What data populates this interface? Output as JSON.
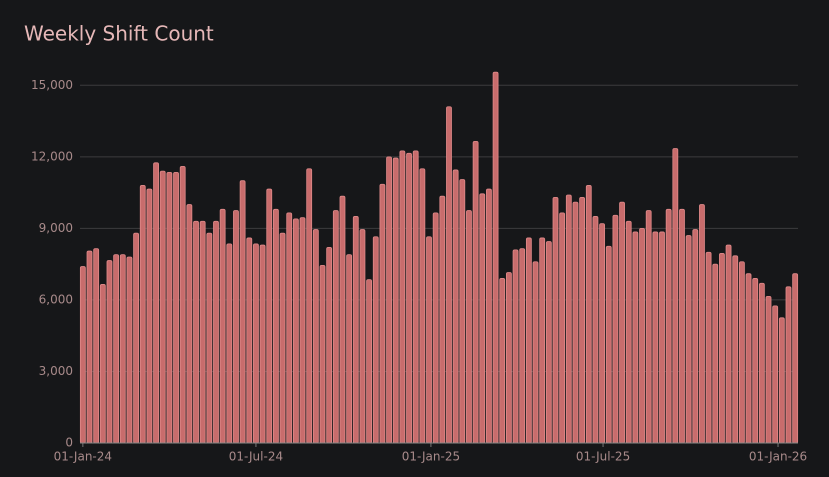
{
  "chart_data": {
    "type": "bar",
    "title": "Weekly Shift Count",
    "color": "#c86c6c",
    "grid": true,
    "x": [
      "2024-01-01",
      "2024-01-08",
      "2024-01-15",
      "2024-01-22",
      "2024-01-29",
      "2024-02-05",
      "2024-02-12",
      "2024-02-19",
      "2024-02-26",
      "2024-03-04",
      "2024-03-11",
      "2024-03-18",
      "2024-03-25",
      "2024-04-01",
      "2024-04-08",
      "2024-04-15",
      "2024-04-22",
      "2024-04-29",
      "2024-05-06",
      "2024-05-13",
      "2024-05-20",
      "2024-05-27",
      "2024-06-03",
      "2024-06-10",
      "2024-06-17",
      "2024-06-24",
      "2024-07-01",
      "2024-07-08",
      "2024-07-15",
      "2024-07-22",
      "2024-07-29",
      "2024-08-05",
      "2024-08-12",
      "2024-08-19",
      "2024-08-26",
      "2024-09-02",
      "2024-09-09",
      "2024-09-16",
      "2024-09-23",
      "2024-09-30",
      "2024-10-07",
      "2024-10-14",
      "2024-10-21",
      "2024-10-28",
      "2024-11-04",
      "2024-11-11",
      "2024-11-18",
      "2024-11-25",
      "2024-12-02",
      "2024-12-09",
      "2024-12-16",
      "2024-12-23",
      "2024-12-30",
      "2025-01-06",
      "2025-01-13",
      "2025-01-20",
      "2025-01-27",
      "2025-02-03",
      "2025-02-10",
      "2025-02-17",
      "2025-02-24",
      "2025-03-03",
      "2025-03-10",
      "2025-03-17",
      "2025-03-24",
      "2025-03-31",
      "2025-04-07",
      "2025-04-14",
      "2025-04-21",
      "2025-04-28",
      "2025-05-05",
      "2025-05-12",
      "2025-05-19",
      "2025-05-26",
      "2025-06-02",
      "2025-06-09",
      "2025-06-16",
      "2025-06-23",
      "2025-06-30",
      "2025-07-07",
      "2025-07-14",
      "2025-07-21",
      "2025-07-28",
      "2025-08-04",
      "2025-08-11",
      "2025-08-18",
      "2025-08-25",
      "2025-09-01",
      "2025-09-08",
      "2025-09-15",
      "2025-09-22",
      "2025-09-29",
      "2025-10-06",
      "2025-10-13",
      "2025-10-20",
      "2025-10-27",
      "2025-11-03",
      "2025-11-10",
      "2025-11-17",
      "2025-11-24",
      "2025-12-01",
      "2025-12-08",
      "2025-12-15",
      "2025-12-22",
      "2025-12-29",
      "2026-01-05",
      "2026-01-12",
      "2026-01-19"
    ],
    "values": [
      7400,
      8050,
      8150,
      6650,
      7650,
      7900,
      7900,
      7800,
      8800,
      10800,
      10650,
      11750,
      11400,
      11350,
      11350,
      11600,
      10000,
      9300,
      9300,
      8800,
      9300,
      9800,
      8350,
      9750,
      11000,
      8600,
      8350,
      8300,
      10650,
      9800,
      8800,
      9650,
      9400,
      9450,
      11500,
      8950,
      7450,
      8200,
      9750,
      10350,
      7900,
      9500,
      8950,
      6850,
      8650,
      10850,
      12000,
      11950,
      12250,
      12150,
      12250,
      11500,
      8650,
      9650,
      10350,
      14100,
      11450,
      11050,
      9750,
      12650,
      10450,
      10650,
      15550,
      6900,
      7150,
      8100,
      8150,
      8600,
      7600,
      8600,
      8450,
      10300,
      9650,
      10400,
      10100,
      10300,
      10800,
      9500,
      9200,
      8250,
      9550,
      10100,
      9300,
      8850,
      9000,
      9750,
      8850,
      8850,
      9800,
      12350,
      9800,
      8700,
      8950,
      10000,
      8000,
      7500,
      7950,
      8300,
      7850,
      7600,
      7100,
      6900,
      6700,
      6150,
      5750,
      5250,
      6550,
      7100
    ],
    "xlim": [
      "2023-12-29",
      "2026-01-22"
    ],
    "xticks": [
      {
        "value": "2024-01-01",
        "label": "01-Jan-24"
      },
      {
        "value": "2024-07-01",
        "label": "01-Jul-24"
      },
      {
        "value": "2025-01-01",
        "label": "01-Jan-25"
      },
      {
        "value": "2025-07-01",
        "label": "01-Jul-25"
      },
      {
        "value": "2026-01-01",
        "label": "01-Jan-26"
      }
    ],
    "ylim": [
      0,
      15600
    ],
    "yticks": [
      0,
      {
        "value": 3000,
        "label": "3,000"
      },
      {
        "value": 6000,
        "label": "6,000"
      },
      {
        "value": 9000,
        "label": "9,000"
      },
      {
        "value": 12000,
        "label": "12,000"
      },
      {
        "value": 15000,
        "label": "15,000"
      }
    ]
  }
}
